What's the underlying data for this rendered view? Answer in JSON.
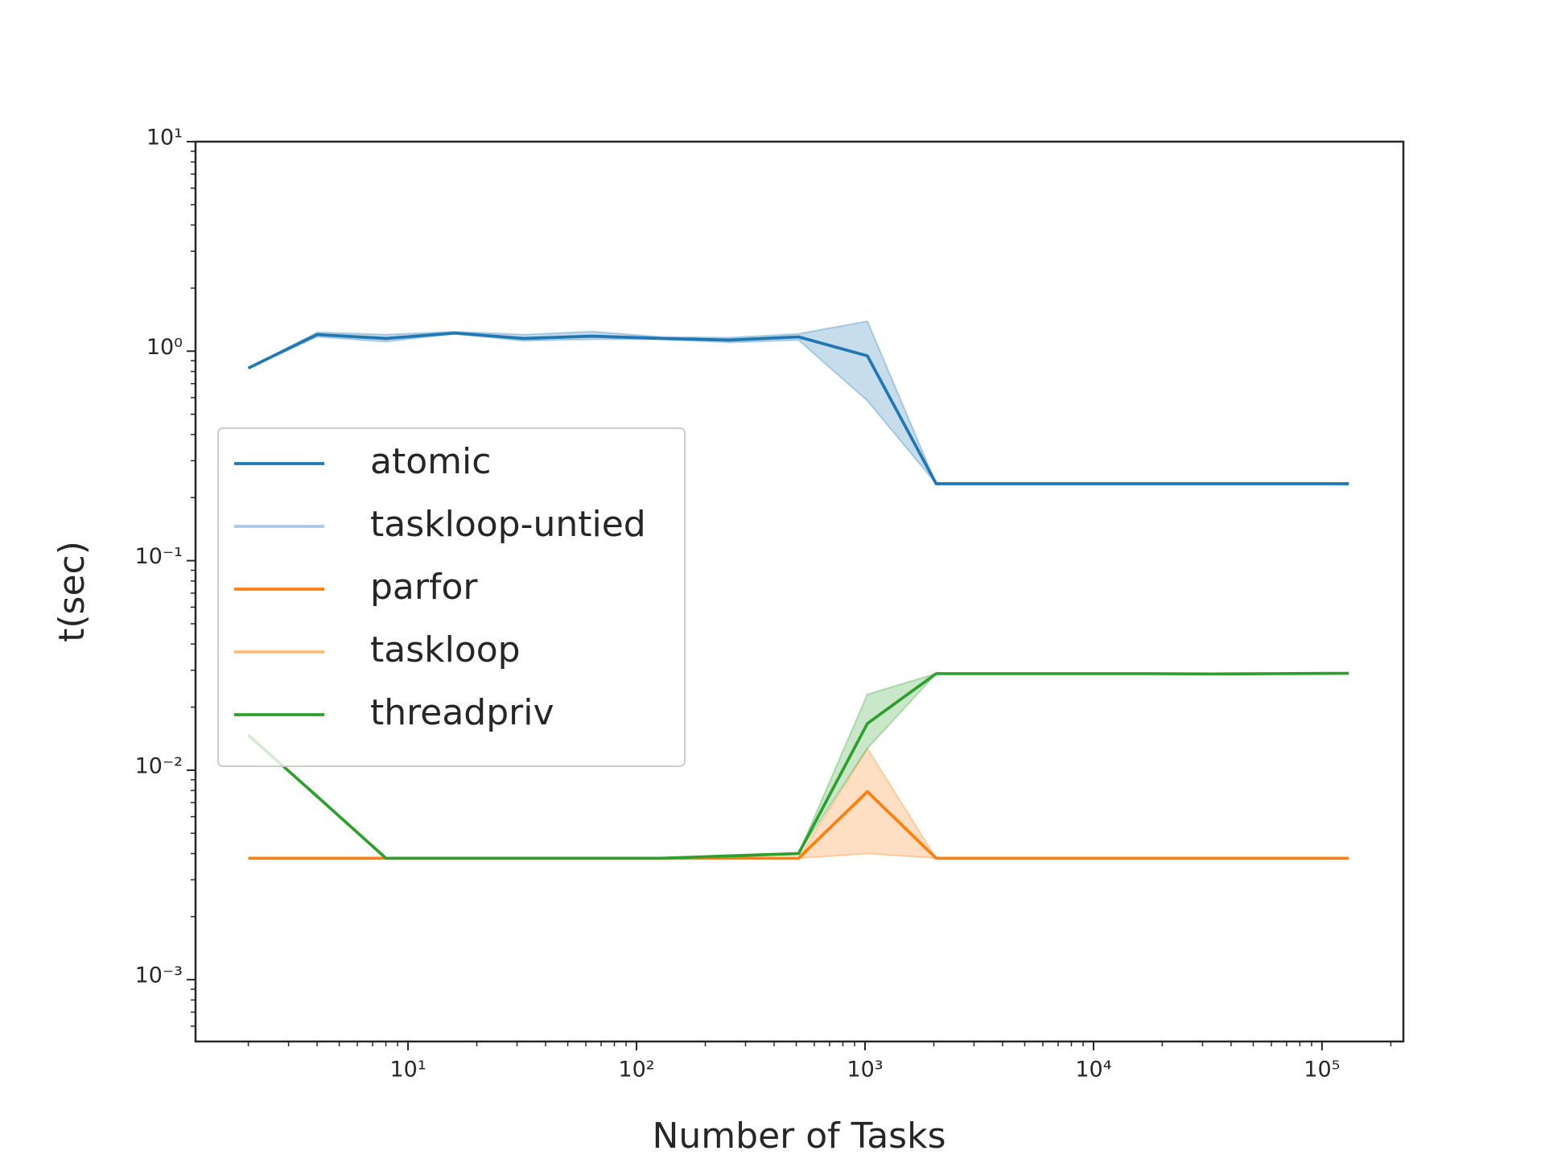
{
  "chart_data": {
    "type": "line",
    "x_label": "Number of Tasks",
    "y_label": "t(sec)",
    "x": [
      2,
      4,
      8,
      16,
      32,
      64,
      128,
      256,
      512,
      1024,
      2048,
      4096,
      8192,
      16384,
      32768,
      65536,
      131072
    ],
    "series": [
      {
        "name": "atomic",
        "color": "#1f77b4",
        "values": [
          0.83,
          1.2,
          1.15,
          1.22,
          1.15,
          1.18,
          1.15,
          1.13,
          1.17,
          0.95,
          0.233,
          0.233,
          0.233,
          0.233,
          0.233,
          0.233,
          0.233
        ],
        "lower": [
          0.83,
          1.17,
          1.11,
          1.21,
          1.12,
          1.14,
          1.14,
          1.1,
          1.13,
          0.58,
          0.233,
          0.233,
          0.233,
          0.233,
          0.233,
          0.233,
          0.233
        ],
        "upper": [
          0.83,
          1.23,
          1.2,
          1.24,
          1.2,
          1.24,
          1.17,
          1.16,
          1.21,
          1.39,
          0.233,
          0.233,
          0.233,
          0.233,
          0.233,
          0.233,
          0.233
        ]
      },
      {
        "name": "taskloop-untied",
        "color": "#aec7e8",
        "values": [
          0.83,
          1.2,
          1.15,
          1.22,
          1.15,
          1.18,
          1.15,
          1.13,
          1.17,
          0.95,
          0.233,
          0.233,
          0.233,
          0.233,
          0.233,
          0.233,
          0.233
        ]
      },
      {
        "name": "parfor",
        "color": "#ff7f0e",
        "values": [
          0.0038,
          0.0038,
          0.0038,
          0.0038,
          0.0038,
          0.0038,
          0.0038,
          0.0038,
          0.0038,
          0.0079,
          0.0038,
          0.0038,
          0.0038,
          0.0038,
          0.0038,
          0.0038,
          0.0038
        ],
        "lower": [
          0.0038,
          0.0038,
          0.0038,
          0.0038,
          0.0038,
          0.0038,
          0.0038,
          0.0038,
          0.0038,
          0.004,
          0.0038,
          0.0038,
          0.0038,
          0.0038,
          0.0038,
          0.0038,
          0.0038
        ],
        "upper": [
          0.0038,
          0.0038,
          0.0038,
          0.0038,
          0.0038,
          0.0038,
          0.0038,
          0.0038,
          0.0038,
          0.0127,
          0.0038,
          0.0038,
          0.0038,
          0.0038,
          0.0038,
          0.0038,
          0.0038
        ]
      },
      {
        "name": "taskloop",
        "color": "#ffbb78",
        "values": [
          0.0038,
          0.0038,
          0.0038,
          0.0038,
          0.0038,
          0.0038,
          0.0038,
          0.0038,
          0.0038,
          0.0079,
          0.0038,
          0.0038,
          0.0038,
          0.0038,
          0.0038,
          0.0038,
          0.0038
        ]
      },
      {
        "name": "threadpriv",
        "color": "#2ca02c",
        "values": [
          0.0147,
          0.0075,
          0.0038,
          0.0038,
          0.0038,
          0.0038,
          0.0038,
          0.0039,
          0.004,
          0.0167,
          0.0289,
          0.0289,
          0.0289,
          0.0289,
          0.0288,
          0.0289,
          0.029
        ],
        "lower": [
          0.0147,
          0.0075,
          0.0038,
          0.0038,
          0.0038,
          0.0038,
          0.0038,
          0.0039,
          0.004,
          0.0127,
          0.0289,
          0.0289,
          0.0289,
          0.0289,
          0.0288,
          0.0289,
          0.029
        ],
        "upper": [
          0.0147,
          0.0075,
          0.0038,
          0.0038,
          0.0038,
          0.0038,
          0.0038,
          0.0039,
          0.004,
          0.023,
          0.0289,
          0.0289,
          0.0289,
          0.0289,
          0.0288,
          0.0289,
          0.029
        ]
      }
    ],
    "xlog": true,
    "ylog": true,
    "xlim": [
      1.175,
      227000
    ],
    "ylim": [
      0.000507,
      10
    ],
    "xticks": [
      {
        "value": 10,
        "label": "10¹"
      },
      {
        "value": 100,
        "label": "10²"
      },
      {
        "value": 1000,
        "label": "10³"
      },
      {
        "value": 10000,
        "label": "10⁴"
      },
      {
        "value": 100000,
        "label": "10⁵"
      }
    ],
    "yticks": [
      {
        "value": 0.001,
        "label": "10⁻³"
      },
      {
        "value": 0.01,
        "label": "10⁻²"
      },
      {
        "value": 0.1,
        "label": "10⁻¹"
      },
      {
        "value": 1,
        "label": "10⁰"
      },
      {
        "value": 10,
        "label": "10¹"
      }
    ],
    "legend": "left",
    "grid": false
  }
}
